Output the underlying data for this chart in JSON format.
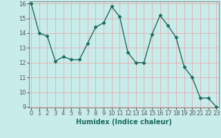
{
  "xlabel": "Humidex (Indice chaleur)",
  "x_values": [
    0,
    1,
    2,
    3,
    4,
    5,
    6,
    7,
    8,
    9,
    10,
    11,
    12,
    13,
    14,
    15,
    16,
    17,
    18,
    19,
    20,
    21,
    22,
    23
  ],
  "y_values": [
    16,
    14,
    13.8,
    12.1,
    12.4,
    12.2,
    12.2,
    13.3,
    14.4,
    14.7,
    15.8,
    15.1,
    12.7,
    12.0,
    12.0,
    13.9,
    15.2,
    14.5,
    13.7,
    11.7,
    11.0,
    9.6,
    9.6,
    9.0
  ],
  "line_color": "#1a6b5e",
  "marker_color": "#1a6b5e",
  "bg_color": "#c8ecea",
  "grid_color_major": "#e8a0a0",
  "grid_color_minor": "#e8c8c8",
  "axis_label_color": "#1a6b5e",
  "tick_color": "#555555",
  "ylim_min": 9,
  "ylim_max": 16,
  "xlim_min": -0.3,
  "xlim_max": 23.3,
  "yticks": [
    9,
    10,
    11,
    12,
    13,
    14,
    15,
    16
  ],
  "xticks": [
    0,
    1,
    2,
    3,
    4,
    5,
    6,
    7,
    8,
    9,
    10,
    11,
    12,
    13,
    14,
    15,
    16,
    17,
    18,
    19,
    20,
    21,
    22,
    23
  ],
  "tick_fontsize": 6,
  "xlabel_fontsize": 7,
  "line_width": 1.0,
  "marker_size": 2.5
}
